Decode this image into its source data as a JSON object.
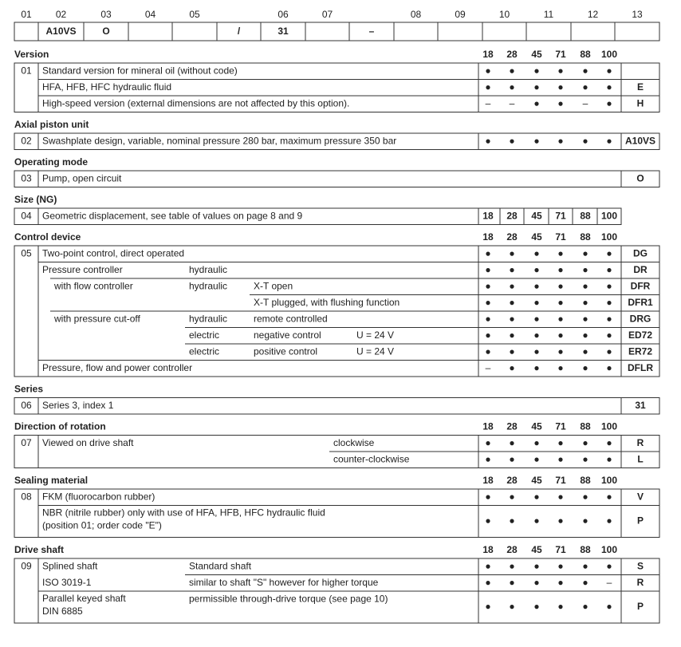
{
  "code_header": {
    "cells": [
      {
        "label": "01"
      },
      {
        "label": "02",
        "code": "A10VS"
      },
      {
        "label": "03",
        "code": "O"
      },
      {
        "label": "04"
      },
      {
        "label": "05"
      },
      {
        "code": "/"
      },
      {
        "label": "06",
        "code": "31"
      },
      {
        "label": "07"
      },
      {
        "code": "–"
      },
      {
        "label": "08"
      },
      {
        "label": "09"
      },
      {
        "label": "10"
      },
      {
        "label": "11"
      },
      {
        "label": "12"
      },
      {
        "label": "13"
      }
    ]
  },
  "sections": [
    {
      "title": "Version",
      "size_header": [
        "18",
        "28",
        "45",
        "71",
        "88",
        "100"
      ],
      "number": "01",
      "rows": [
        {
          "item": "Standard version for mineral oil (without code)",
          "marks": [
            "●",
            "●",
            "●",
            "●",
            "●",
            "●"
          ]
        },
        {
          "item": "HFA, HFB, HFC hydraulic fluid",
          "marks": [
            "●",
            "●",
            "●",
            "●",
            "●",
            "●"
          ],
          "code": "E"
        },
        {
          "item": "High-speed version (external dimensions are not affected by this option).",
          "marks": [
            "–",
            "–",
            "●",
            "●",
            "–",
            "●"
          ],
          "code": "H"
        }
      ]
    },
    {
      "title": "Axial piston unit",
      "number": "02",
      "rows": [
        {
          "item": "Swashplate design, variable, nominal pressure 280 bar, maximum pressure 350 bar",
          "marks": [
            "●",
            "●",
            "●",
            "●",
            "●",
            "●"
          ],
          "code": "A10VS"
        }
      ]
    },
    {
      "title": "Operating mode",
      "number": "03",
      "rows": [
        {
          "item": "Pump, open circuit",
          "code": "O"
        }
      ]
    },
    {
      "title": "Size (NG)",
      "number": "04",
      "rows": [
        {
          "item": "Geometric displacement, see table of values on page 8 and 9",
          "sizes": [
            "18",
            "28",
            "45",
            "71",
            "88",
            "100"
          ]
        }
      ]
    },
    {
      "title": "Control device",
      "size_header": [
        "18",
        "28",
        "45",
        "71",
        "88",
        "100"
      ],
      "number": "05",
      "rows": [
        {
          "item": "Two-point control, direct operated",
          "marks": [
            "●",
            "●",
            "●",
            "●",
            "●",
            "●"
          ],
          "code": "DG"
        },
        {
          "item": "Pressure controller",
          "kind": "hydraulic",
          "marks": [
            "●",
            "●",
            "●",
            "●",
            "●",
            "●"
          ],
          "code": "DR"
        },
        {
          "subitem": "with flow controller",
          "kind": "hydraulic",
          "detail": "X-T open",
          "marks": [
            "●",
            "●",
            "●",
            "●",
            "●",
            "●"
          ],
          "code": "DFR"
        },
        {
          "detail": "X-T plugged, with flushing function",
          "marks": [
            "●",
            "●",
            "●",
            "●",
            "●",
            "●"
          ],
          "code": "DFR1"
        },
        {
          "subitem": "with pressure cut-off",
          "kind": "hydraulic",
          "detail": "remote controlled",
          "marks": [
            "●",
            "●",
            "●",
            "●",
            "●",
            "●"
          ],
          "code": "DRG"
        },
        {
          "kind": "electric",
          "detail": "negative control",
          "note": "U = 24 V",
          "marks": [
            "●",
            "●",
            "●",
            "●",
            "●",
            "●"
          ],
          "code": "ED72"
        },
        {
          "kind": "electric",
          "detail": "positive control",
          "note": "U = 24 V",
          "marks": [
            "●",
            "●",
            "●",
            "●",
            "●",
            "●"
          ],
          "code": "ER72"
        },
        {
          "item": "Pressure, flow and power controller",
          "marks": [
            "–",
            "●",
            "●",
            "●",
            "●",
            "●"
          ],
          "code": "DFLR"
        }
      ]
    },
    {
      "title": "Series",
      "number": "06",
      "rows": [
        {
          "item": "Series 3, index 1",
          "code": "31"
        }
      ]
    },
    {
      "title": "Direction of rotation",
      "size_header": [
        "18",
        "28",
        "45",
        "71",
        "88",
        "100"
      ],
      "number": "07",
      "rows": [
        {
          "item": "Viewed on drive shaft",
          "option": "clockwise",
          "marks": [
            "●",
            "●",
            "●",
            "●",
            "●",
            "●"
          ],
          "code": "R"
        },
        {
          "option": "counter-clockwise",
          "marks": [
            "●",
            "●",
            "●",
            "●",
            "●",
            "●"
          ],
          "code": "L"
        }
      ]
    },
    {
      "title": "Sealing material",
      "size_header": [
        "18",
        "28",
        "45",
        "71",
        "88",
        "100"
      ],
      "number": "08",
      "rows": [
        {
          "item": "FKM (fluorocarbon rubber)",
          "marks": [
            "●",
            "●",
            "●",
            "●",
            "●",
            "●"
          ],
          "code": "V"
        },
        {
          "item": [
            "NBR (nitrile rubber) only with use of HFA, HFB, HFC hydraulic fluid",
            "(position 01; order code \"E\")"
          ],
          "marks": [
            "●",
            "●",
            "●",
            "●",
            "●",
            "●"
          ],
          "code": "P"
        }
      ]
    },
    {
      "title": "Drive shaft",
      "size_header": [
        "18",
        "28",
        "45",
        "71",
        "88",
        "100"
      ],
      "number": "09",
      "rows": [
        {
          "item": "Splined shaft",
          "kind": "Standard shaft",
          "marks": [
            "●",
            "●",
            "●",
            "●",
            "●",
            "●"
          ],
          "code": "S"
        },
        {
          "item_continued": "ISO 3019-1",
          "kind": "similar to shaft \"S\" however for higher torque",
          "marks": [
            "●",
            "●",
            "●",
            "●",
            "●",
            "–"
          ],
          "code": "R"
        },
        {
          "item": [
            "Parallel keyed shaft",
            "DIN 6885"
          ],
          "kind": "permissible through-drive torque (see page 10)",
          "marks": [
            "●",
            "●",
            "●",
            "●",
            "●",
            "●"
          ],
          "code": "P"
        }
      ]
    }
  ]
}
